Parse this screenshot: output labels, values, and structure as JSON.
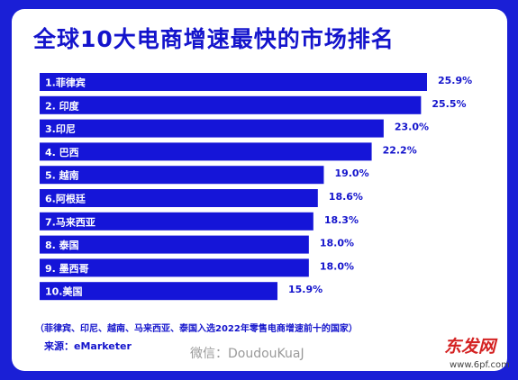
{
  "chart_data": {
    "type": "bar",
    "orientation": "horizontal",
    "title": "全球10大电商增速最快的市场排名",
    "categories": [
      "1.菲律宾",
      "2. 印度",
      "3.印尼",
      "4. 巴西",
      "5. 越南",
      "6.阿根廷",
      "7.马来西亚",
      "8. 泰国",
      "9. 墨西哥",
      "10.美国"
    ],
    "values": [
      25.9,
      25.5,
      23.0,
      22.2,
      19.0,
      18.6,
      18.3,
      18.0,
      18.0,
      15.9
    ],
    "value_labels": [
      "25.9%",
      "25.5%",
      "23.0%",
      "22.2%",
      "19.0%",
      "18.6%",
      "18.3%",
      "18.0%",
      "18.0%",
      "15.9%"
    ],
    "bar_color": "#1515d8",
    "background_color": "#1a1fd6",
    "text_color": "#1414cc"
  },
  "footnote": "（菲律宾、印尼、越南、马来西亚、泰国入选2022年零售电商增速前十的国家）",
  "source": "来源：eMarketer",
  "watermark": {
    "wechat": "微信：DoudouKuaJ",
    "logo": "东发网",
    "url": "www.6pf.com"
  }
}
